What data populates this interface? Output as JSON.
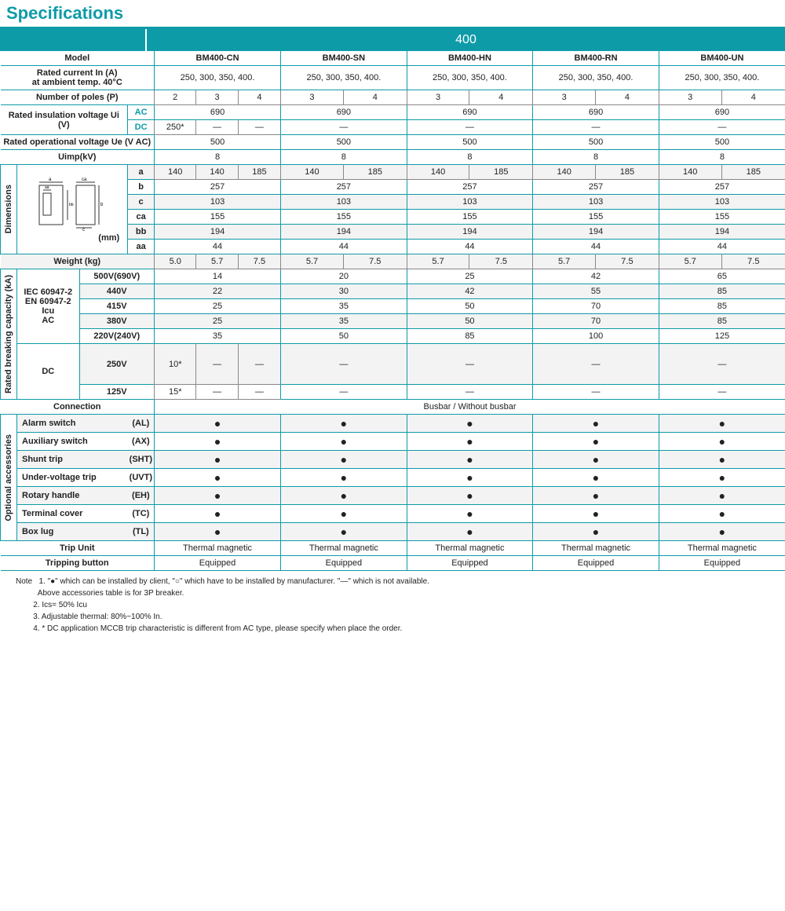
{
  "title": "Specifications",
  "series": "400",
  "models": [
    "BM400-CN",
    "BM400-SN",
    "BM400-HN",
    "BM400-RN",
    "BM400-UN"
  ],
  "model_label": "Model",
  "rows": {
    "rated_current": {
      "label": "Rated current In (A)",
      "sub": "at ambient temp. 40°C",
      "v": "250, 300, 350, 400."
    },
    "poles": {
      "label": "Number of poles (P)",
      "cn": [
        "2",
        "3",
        "4"
      ],
      "oth": [
        "3",
        "4"
      ]
    },
    "ui": {
      "label": "Rated insulation voltage Ui (V)",
      "ac": "AC",
      "dc": "DC",
      "acv": "690",
      "dcv": [
        "250*",
        "—",
        "—"
      ],
      "dcoth": "—"
    },
    "ue": {
      "label": "Rated operational voltage Ue (V AC)",
      "v": "500"
    },
    "uimp": {
      "label": "Uimp(kV)",
      "v": "8"
    },
    "dim": {
      "label": "Dimensions",
      "unit": "(mm)",
      "a": {
        "k": "a",
        "cn": [
          "140",
          "140",
          "185"
        ],
        "oth": [
          "140",
          "185"
        ]
      },
      "b": {
        "k": "b",
        "v": "257"
      },
      "c": {
        "k": "c",
        "v": "103"
      },
      "ca": {
        "k": "ca",
        "v": "155"
      },
      "bb": {
        "k": "bb",
        "v": "194"
      },
      "aa": {
        "k": "aa",
        "v": "44"
      }
    },
    "weight": {
      "label": "Weight (kg)",
      "cn": [
        "5.0",
        "5.7",
        "7.5"
      ],
      "oth": [
        "5.7",
        "7.5"
      ]
    },
    "break": {
      "label": "Rated breaking capacity (kA)",
      "std": "IEC 60947-2 EN 60947-2 Icu",
      "ac": "AC",
      "dc": "DC",
      "v500": {
        "k": "500V(690V)",
        "d": [
          "14",
          "20",
          "25",
          "42",
          "65"
        ]
      },
      "v440": {
        "k": "440V",
        "d": [
          "22",
          "30",
          "42",
          "55",
          "85"
        ]
      },
      "v415": {
        "k": "415V",
        "d": [
          "25",
          "35",
          "50",
          "70",
          "85"
        ]
      },
      "v380": {
        "k": "380V",
        "d": [
          "25",
          "35",
          "50",
          "70",
          "85"
        ]
      },
      "v220": {
        "k": "220V(240V)",
        "d": [
          "35",
          "50",
          "85",
          "100",
          "125"
        ]
      },
      "v250": {
        "k": "250V",
        "cn": [
          "10*",
          "—",
          "—"
        ],
        "oth": "—"
      },
      "v125": {
        "k": "125V",
        "cn": [
          "15*",
          "—",
          "—"
        ],
        "oth": "—"
      }
    },
    "conn": {
      "label": "Connection",
      "v": "Busbar / Without busbar"
    },
    "opt": {
      "label": "Optional accessories",
      "items": [
        {
          "n": "Alarm switch",
          "c": "(AL)"
        },
        {
          "n": "Auxiliary switch",
          "c": "(AX)"
        },
        {
          "n": "Shunt trip",
          "c": "(SHT)"
        },
        {
          "n": "Under-voltage trip",
          "c": "(UVT)"
        },
        {
          "n": "Rotary handle",
          "c": "(EH)"
        },
        {
          "n": "Terminal cover",
          "c": "(TC)"
        },
        {
          "n": "Box lug",
          "c": "(TL)"
        }
      ]
    },
    "trip": {
      "label": "Trip Unit",
      "v": "Thermal magnetic"
    },
    "btn": {
      "label": "Tripping button",
      "v": "Equipped"
    }
  },
  "note": {
    "h": "Note",
    "n1": "1. \"●\" which can be installed by client, \"○\" which have to be installed by manufacturer. \"—\" which is not available.",
    "n1b": "Above accessories table is for 3P breaker.",
    "n2": "2. Ics= 50% Icu",
    "n3": "3. Adjustable thermal: 80%~100% In.",
    "n4": "4. * DC application MCCB trip characteristic is different from AC type, please specify when place the order."
  }
}
